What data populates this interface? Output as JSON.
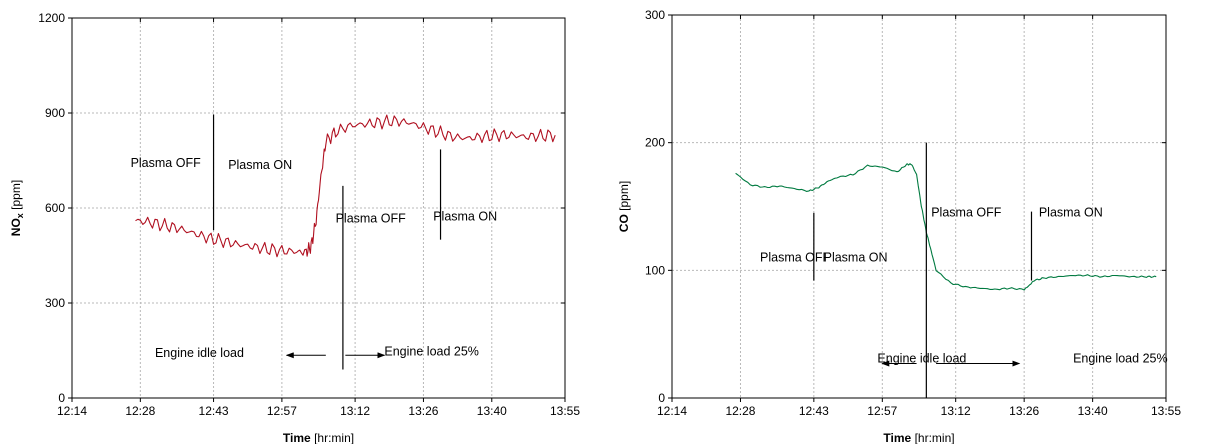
{
  "chart_data": [
    {
      "type": "line",
      "xlabel_bold": "Time",
      "xlabel_unit": "[hr:min]",
      "ylabel_main": "NO",
      "ylabel_sub": "x",
      "ylabel_unit": "[ppm]",
      "x_ticks": [
        "12:14",
        "12:28",
        "12:43",
        "12:57",
        "13:12",
        "13:26",
        "13:40",
        "13:55"
      ],
      "x_tick_minutes": [
        734,
        748,
        763,
        777,
        792,
        806,
        820,
        835
      ],
      "ylim": [
        0,
        1200
      ],
      "y_ticks": [
        0,
        300,
        600,
        900,
        1200
      ],
      "grid": true,
      "color": "#b01020",
      "series": [
        {
          "x": [
            747,
            750,
            753,
            756,
            759,
            762,
            765,
            768,
            771,
            774,
            777,
            780,
            782,
            783,
            784,
            785,
            786,
            788,
            791,
            794,
            797,
            800,
            803,
            806,
            809,
            812,
            815,
            818,
            821,
            824,
            827,
            830,
            833
          ],
          "y": [
            560,
            555,
            545,
            535,
            520,
            505,
            495,
            485,
            478,
            470,
            465,
            462,
            460,
            480,
            560,
            700,
            810,
            840,
            860,
            865,
            870,
            875,
            870,
            855,
            840,
            825,
            820,
            825,
            830,
            830,
            825,
            828,
            830
          ]
        }
      ],
      "annotations": [
        {
          "text": "Plasma OFF",
          "x": 746,
          "y": 730
        },
        {
          "text": "Plasma ON",
          "x": 766,
          "y": 723
        },
        {
          "text": "Plasma OFF",
          "x": 788,
          "y": 555
        },
        {
          "text": "Plasma ON",
          "x": 808,
          "y": 560
        },
        {
          "text": "Engine idle load",
          "x": 751,
          "y": 130
        },
        {
          "text": "Engine load 25%",
          "x": 798,
          "y": 135
        }
      ],
      "vlines": [
        {
          "x": 763,
          "y0": 530,
          "y1": 895
        },
        {
          "x": 789.5,
          "y0": 90,
          "y1": 670
        },
        {
          "x": 809.5,
          "y0": 500,
          "y1": 785
        }
      ],
      "arrows": [
        {
          "x0": 786,
          "x1": 778,
          "y": 135
        },
        {
          "x0": 790,
          "x1": 798,
          "y": 135
        }
      ]
    },
    {
      "type": "line",
      "xlabel_bold": "Time",
      "xlabel_unit": "[hr:min]",
      "ylabel_main": "CO",
      "ylabel_unit": "[ppm]",
      "x_ticks": [
        "12:14",
        "12:28",
        "12:43",
        "12:57",
        "13:12",
        "13:26",
        "13:40",
        "13:55"
      ],
      "x_tick_minutes": [
        734,
        748,
        763,
        777,
        792,
        806,
        820,
        835
      ],
      "ylim": [
        0,
        300
      ],
      "y_ticks": [
        0,
        100,
        200,
        300
      ],
      "grid": true,
      "color": "#007a40",
      "series": [
        {
          "x": [
            747,
            750,
            753,
            756,
            759,
            762,
            764,
            766,
            768,
            771,
            774,
            777,
            780,
            782,
            783,
            784,
            785,
            786,
            787,
            788,
            791,
            794,
            797,
            800,
            803,
            806,
            807,
            808,
            810,
            813,
            816,
            819,
            822,
            825,
            828,
            831,
            833
          ],
          "y": [
            176,
            167,
            165,
            166,
            164,
            162,
            165,
            170,
            173,
            175,
            182,
            181,
            177,
            183,
            183,
            175,
            150,
            130,
            115,
            100,
            90,
            87,
            86,
            85,
            86,
            85,
            88,
            92,
            94,
            95,
            96,
            96,
            95,
            96,
            95,
            95,
            95
          ]
        }
      ],
      "annotations": [
        {
          "text": "Plasma OFF",
          "x": 752,
          "y": 107
        },
        {
          "text": "Plasma ON",
          "x": 765,
          "y": 107
        },
        {
          "text": "Plasma OFF",
          "x": 787,
          "y": 142
        },
        {
          "text": "Plasma ON",
          "x": 809,
          "y": 142
        },
        {
          "text": "Engine idle load",
          "x": 776,
          "y": 28
        },
        {
          "text": "Engine load 25%",
          "x": 816,
          "y": 28
        }
      ],
      "vlines": [
        {
          "x": 763,
          "y0": 92,
          "y1": 145
        },
        {
          "x": 786,
          "y0": 0,
          "y1": 200
        },
        {
          "x": 807.5,
          "y0": 92,
          "y1": 146
        }
      ],
      "arrows": [
        {
          "x0": 784,
          "x1": 777,
          "y": 27
        },
        {
          "x0": 788,
          "x1": 805,
          "y": 27
        }
      ]
    }
  ]
}
